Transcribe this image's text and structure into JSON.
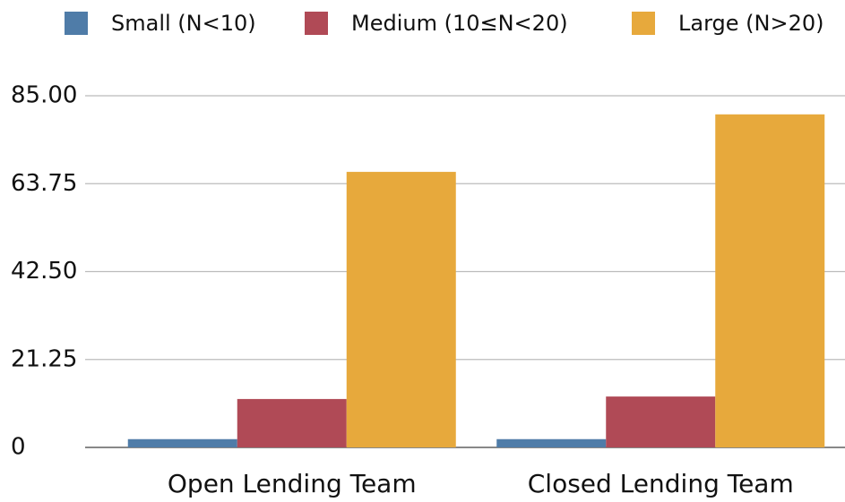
{
  "chart_data": {
    "type": "bar",
    "categories": [
      "Open Lending Team",
      "Closed Lending Team"
    ],
    "series": [
      {
        "name": "Small (N<10)",
        "color": "#4f7ca8",
        "values": [
          2,
          2
        ]
      },
      {
        "name": "Medium (10≤N<20)",
        "color": "#b04a56",
        "values": [
          11.7,
          12.3
        ]
      },
      {
        "name": "Large (N>20)",
        "color": "#e7a93c",
        "values": [
          66.6,
          80.5
        ]
      }
    ],
    "ylim": [
      0,
      85
    ],
    "yticks": [
      0,
      21.25,
      {
        "value": 42.5,
        "label": "42.50"
      },
      63.75,
      {
        "value": 85,
        "label": "85.00"
      }
    ],
    "grid": true,
    "legend": "top"
  }
}
